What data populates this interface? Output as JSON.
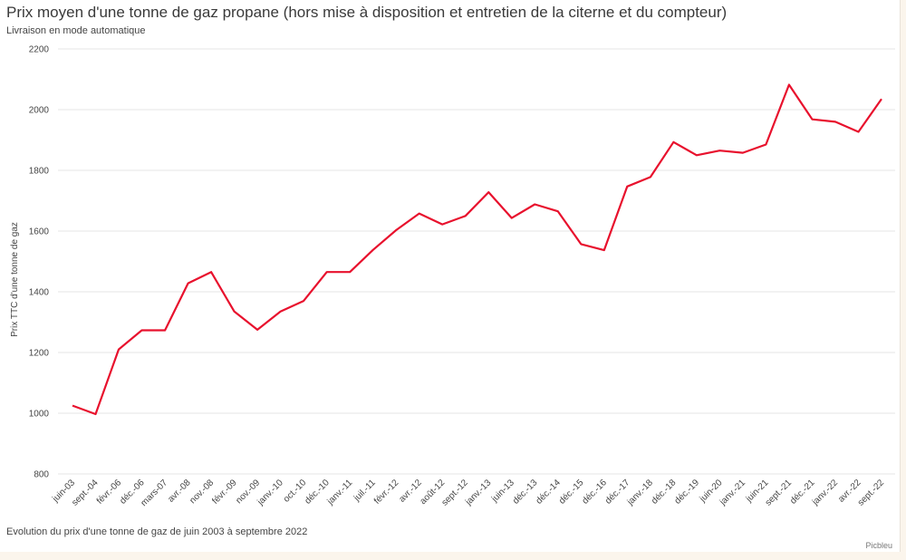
{
  "page": {
    "title": "Prix moyen d'une tonne de gaz propane (hors mise à disposition et entretien de la citerne et du compteur)",
    "subtitle": "Livraison en mode automatique",
    "caption": "Evolution du prix d'une tonne de gaz de juin 2003 à septembre 2022",
    "credit": "Picbleu"
  },
  "colors": {
    "line": "#e8112d",
    "grid": "#e6e6e6",
    "axis": "#dddddd"
  },
  "chart_data": {
    "type": "line",
    "title": "Prix moyen d'une tonne de gaz propane (hors mise à disposition et entretien de la citerne et du compteur)",
    "subtitle": "Livraison en mode automatique",
    "xlabel": "",
    "ylabel": "Prix TTC d'une tonne de gaz",
    "ylim": [
      800,
      2200
    ],
    "yticks": [
      800,
      1000,
      1200,
      1400,
      1600,
      1800,
      2000,
      2200
    ],
    "grid": true,
    "categories": [
      "juin-03",
      "sept.-04",
      "févr.-06",
      "déc.-06",
      "mars-07",
      "avr.-08",
      "nov.-08",
      "févr.-09",
      "nov.-09",
      "janv.-10",
      "oct.-10",
      "déc.-10",
      "janv.-11",
      "juil.-11",
      "févr.-12",
      "avr.-12",
      "août-12",
      "sept.-12",
      "janv.-13",
      "juin-13",
      "déc.-13",
      "déc.-14",
      "déc.-15",
      "déc.-16",
      "déc.-17",
      "janv.-18",
      "déc.-18",
      "déc.-19",
      "juin-20",
      "janv.-21",
      "juin-21",
      "sept.-21",
      "déc.-21",
      "janv.-22",
      "avr.-22",
      "sept.-22"
    ],
    "series": [
      {
        "values": [
          1025,
          997,
          1210,
          1273,
          1273,
          1428,
          1465,
          1335,
          1275,
          1335,
          1370,
          1465,
          1465,
          1538,
          1603,
          1658,
          1622,
          1650,
          1728,
          1643,
          1688,
          1665,
          1557,
          1537,
          1747,
          1778,
          1893,
          1850,
          1865,
          1858,
          1885,
          2082,
          1968,
          1960,
          1927,
          2035
        ]
      }
    ]
  }
}
